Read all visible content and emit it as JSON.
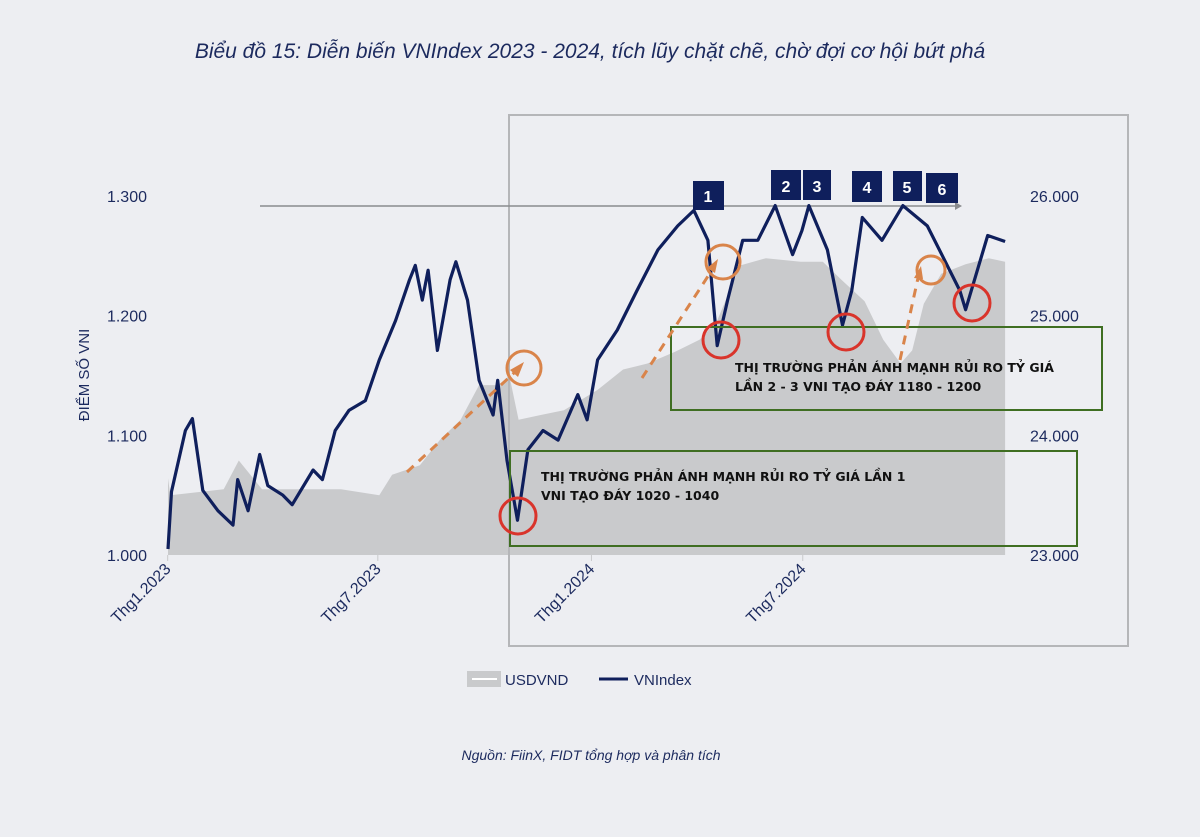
{
  "chart_data": {
    "type": "line",
    "title": "Biểu đồ 15: Diễn biến VNIndex 2023 - 2024, tích lũy chặt chẽ, chờ đợi cơ hội bứt phá",
    "source": "Nguồn: FiinX, FIDT tổng hợp và phân tích",
    "ylabel_left": "ĐIỂM SỐ VNI",
    "yticks_left": [
      "1.000",
      "1.100",
      "1.200",
      "1.300"
    ],
    "ylim_left": [
      1000,
      1300
    ],
    "yticks_right": [
      "23.000",
      "24.000",
      "25.000",
      "26.000"
    ],
    "ylim_right": [
      23000,
      26000
    ],
    "xticks": [
      {
        "label": "Thg1.2023",
        "date": "2023-01-01"
      },
      {
        "label": "Thg7.2023",
        "date": "2023-07-01"
      },
      {
        "label": "Thg1.2024",
        "date": "2024-01-01"
      },
      {
        "label": "Thg7.2024",
        "date": "2024-07-01"
      }
    ],
    "legend": {
      "placement": "bottom",
      "items": [
        "USDVND",
        "VNIndex"
      ]
    },
    "colors": {
      "vnindex": "#0f1f5c",
      "usdvnd": "#c9cacc",
      "red_circle": "#d9342b",
      "orange": "#d9844a",
      "green_box": "#3f6e22",
      "marker": "#0f1f5c"
    },
    "series": [
      {
        "name": "USDVND",
        "type": "area",
        "axis": "right",
        "points": [
          [
            "2023-01-03",
            23640
          ],
          [
            "2023-01-05",
            23500
          ],
          [
            "2023-02-20",
            23550
          ],
          [
            "2023-03-05",
            23790
          ],
          [
            "2023-03-25",
            23550
          ],
          [
            "2023-06-01",
            23550
          ],
          [
            "2023-07-04",
            23500
          ],
          [
            "2023-07-15",
            23670
          ],
          [
            "2023-08-08",
            23750
          ],
          [
            "2023-08-25",
            23960
          ],
          [
            "2023-09-12",
            24130
          ],
          [
            "2023-09-28",
            24420
          ],
          [
            "2023-10-15",
            24420
          ],
          [
            "2023-10-24",
            24500
          ],
          [
            "2023-11-01",
            24130
          ],
          [
            "2023-11-20",
            24170
          ],
          [
            "2023-12-10",
            24210
          ],
          [
            "2024-01-08",
            24380
          ],
          [
            "2024-01-30",
            24550
          ],
          [
            "2024-02-20",
            24600
          ],
          [
            "2024-03-15",
            24700
          ],
          [
            "2024-04-05",
            24800
          ],
          [
            "2024-04-20",
            24960
          ],
          [
            "2024-05-10",
            25420
          ],
          [
            "2024-06-01",
            25480
          ],
          [
            "2024-07-01",
            25450
          ],
          [
            "2024-07-20",
            25450
          ],
          [
            "2024-08-05",
            25300
          ],
          [
            "2024-08-25",
            25120
          ],
          [
            "2024-09-10",
            24800
          ],
          [
            "2024-09-25",
            24600
          ],
          [
            "2024-10-05",
            24710
          ],
          [
            "2024-10-15",
            25100
          ],
          [
            "2024-10-30",
            25350
          ],
          [
            "2024-11-20",
            25430
          ],
          [
            "2024-12-10",
            25480
          ],
          [
            "2024-12-24",
            25450
          ]
        ]
      },
      {
        "name": "VNIndex",
        "type": "line",
        "axis": "left",
        "points": [
          [
            "2023-01-03",
            1005
          ],
          [
            "2023-01-06",
            1053
          ],
          [
            "2023-01-18",
            1104
          ],
          [
            "2023-01-24",
            1114
          ],
          [
            "2023-02-02",
            1054
          ],
          [
            "2023-02-15",
            1037
          ],
          [
            "2023-02-28",
            1025
          ],
          [
            "2023-03-04",
            1063
          ],
          [
            "2023-03-13",
            1037
          ],
          [
            "2023-03-23",
            1084
          ],
          [
            "2023-03-30",
            1058
          ],
          [
            "2023-04-12",
            1050
          ],
          [
            "2023-04-20",
            1042
          ],
          [
            "2023-05-08",
            1071
          ],
          [
            "2023-05-16",
            1063
          ],
          [
            "2023-05-27",
            1104
          ],
          [
            "2023-06-08",
            1121
          ],
          [
            "2023-06-22",
            1129
          ],
          [
            "2023-07-04",
            1163
          ],
          [
            "2023-07-18",
            1196
          ],
          [
            "2023-07-30",
            1230
          ],
          [
            "2023-08-04",
            1242
          ],
          [
            "2023-08-10",
            1213
          ],
          [
            "2023-08-15",
            1238
          ],
          [
            "2023-08-23",
            1171
          ],
          [
            "2023-09-03",
            1230
          ],
          [
            "2023-09-08",
            1245
          ],
          [
            "2023-09-18",
            1213
          ],
          [
            "2023-09-28",
            1146
          ],
          [
            "2023-10-10",
            1117
          ],
          [
            "2023-10-14",
            1146
          ],
          [
            "2023-10-22",
            1079
          ],
          [
            "2023-10-31",
            1029
          ],
          [
            "2023-11-09",
            1088
          ],
          [
            "2023-11-22",
            1104
          ],
          [
            "2023-12-05",
            1096
          ],
          [
            "2023-12-22",
            1134
          ],
          [
            "2023-12-30",
            1113
          ],
          [
            "2024-01-08",
            1163
          ],
          [
            "2024-01-25",
            1188
          ],
          [
            "2024-02-11",
            1221
          ],
          [
            "2024-02-29",
            1255
          ],
          [
            "2024-03-17",
            1275
          ],
          [
            "2024-03-31",
            1288
          ],
          [
            "2024-04-12",
            1263
          ],
          [
            "2024-04-20",
            1175
          ],
          [
            "2024-04-29",
            1213
          ],
          [
            "2024-05-12",
            1263
          ],
          [
            "2024-05-25",
            1263
          ],
          [
            "2024-06-09",
            1292
          ],
          [
            "2024-06-24",
            1251
          ],
          [
            "2024-07-02",
            1271
          ],
          [
            "2024-07-08",
            1292
          ],
          [
            "2024-07-24",
            1255
          ],
          [
            "2024-08-06",
            1192
          ],
          [
            "2024-08-14",
            1221
          ],
          [
            "2024-08-23",
            1282
          ],
          [
            "2024-09-09",
            1263
          ],
          [
            "2024-09-27",
            1292
          ],
          [
            "2024-10-18",
            1275
          ],
          [
            "2024-10-31",
            1250
          ],
          [
            "2024-11-15",
            1221
          ],
          [
            "2024-11-20",
            1205
          ],
          [
            "2024-12-09",
            1267
          ],
          [
            "2024-12-24",
            1262
          ]
        ]
      }
    ],
    "annotations": {
      "peak_markers": [
        "1",
        "2",
        "3",
        "4",
        "5",
        "6"
      ],
      "box1_lines": [
        "THỊ TRƯỜNG PHẢN ÁNH MẠNH RỦI RO TỶ GIÁ LẦN 1",
        "VNI TẠO ĐÁY 1020 - 1040"
      ],
      "box2_lines": [
        "THỊ TRƯỜNG PHẢN ÁNH MẠNH RỦI RO TỶ GIÁ",
        "LẦN 2 - 3  VNI TẠO ĐÁY 1180 - 1200"
      ],
      "resistance_level": 1292
    }
  }
}
